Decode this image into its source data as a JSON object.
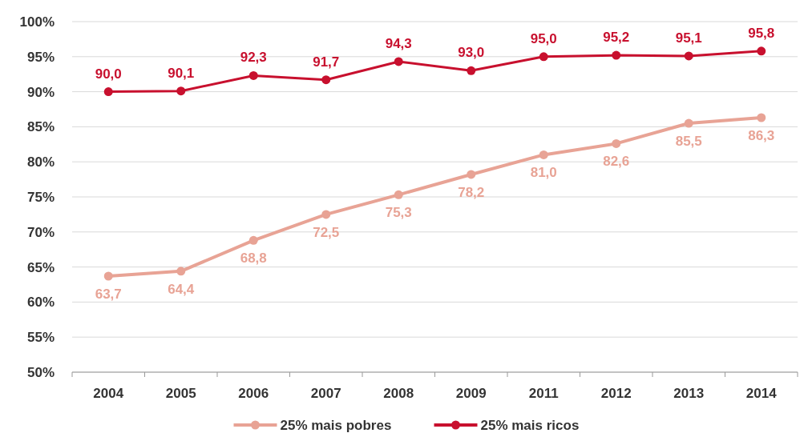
{
  "chart_data": {
    "type": "line",
    "categories": [
      "2004",
      "2005",
      "2006",
      "2007",
      "2008",
      "2009",
      "2011",
      "2012",
      "2013",
      "2014"
    ],
    "series": [
      {
        "name": "25% mais pobres",
        "color": "#e8a395",
        "values": [
          63.7,
          64.4,
          68.8,
          72.5,
          75.3,
          78.2,
          81.0,
          82.6,
          85.5,
          86.3
        ],
        "value_labels": [
          "63,7",
          "64,4",
          "68,8",
          "72,5",
          "75,3",
          "78,2",
          "81,0",
          "82,6",
          "85,5",
          "86,3"
        ]
      },
      {
        "name": "25% mais ricos",
        "color": "#c8102e",
        "values": [
          90.0,
          90.1,
          92.3,
          91.7,
          94.3,
          93.0,
          95.0,
          95.2,
          95.1,
          95.8
        ],
        "value_labels": [
          "90,0",
          "90,1",
          "92,3",
          "91,7",
          "94,3",
          "93,0",
          "95,0",
          "95,2",
          "95,1",
          "95,8"
        ]
      }
    ],
    "ylim": [
      50,
      100
    ],
    "yticks": [
      {
        "value": 50,
        "label": "50%"
      },
      {
        "value": 55,
        "label": "55%"
      },
      {
        "value": 60,
        "label": "60%"
      },
      {
        "value": 65,
        "label": "65%"
      },
      {
        "value": 70,
        "label": "70%"
      },
      {
        "value": 75,
        "label": "75%"
      },
      {
        "value": 80,
        "label": "80%"
      },
      {
        "value": 85,
        "label": "85%"
      },
      {
        "value": 90,
        "label": "90%"
      },
      {
        "value": 95,
        "label": "95%"
      },
      {
        "value": 100,
        "label": "100%"
      }
    ],
    "grid": "y",
    "legend": "bottom",
    "marker": "circle",
    "line_style": "solid"
  }
}
